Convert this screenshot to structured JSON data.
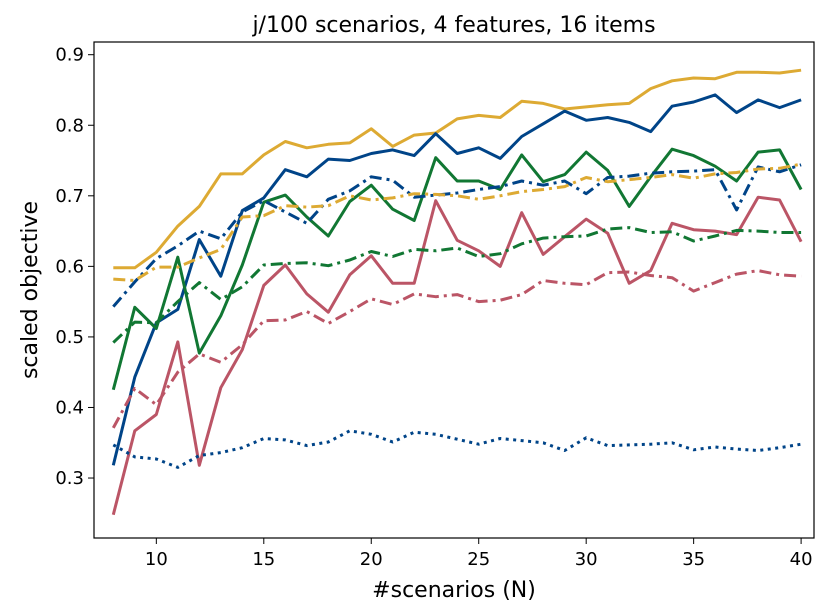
{
  "chart_data": {
    "type": "line",
    "title": "j/100 scenarios, 4 features, 16 items",
    "xlabel": "#scenarios (N)",
    "ylabel": "scaled objective",
    "xlim": [
      7.1,
      40.6
    ],
    "ylim": [
      0.215,
      0.918
    ],
    "xticks": [
      10,
      15,
      20,
      25,
      30,
      35,
      40
    ],
    "yticks": [
      0.3,
      0.4,
      0.5,
      0.6,
      0.7,
      0.8,
      0.9
    ],
    "legend": "none",
    "grid": false,
    "x": [
      8,
      9,
      10,
      11,
      12,
      13,
      14,
      15,
      16,
      17,
      18,
      19,
      20,
      21,
      22,
      23,
      24,
      25,
      26,
      27,
      28,
      29,
      30,
      31,
      32,
      33,
      34,
      35,
      36,
      37,
      38,
      39,
      40
    ],
    "series": [
      {
        "color": "#ddaa33",
        "dash": "solid",
        "values": [
          0.598,
          0.598,
          0.62,
          0.657,
          0.685,
          0.731,
          0.731,
          0.758,
          0.777,
          0.768,
          0.773,
          0.775,
          0.795,
          0.77,
          0.786,
          0.789,
          0.809,
          0.814,
          0.811,
          0.834,
          0.831,
          0.823,
          0.826,
          0.829,
          0.831,
          0.852,
          0.863,
          0.867,
          0.866,
          0.875,
          0.875,
          0.874,
          0.878
        ]
      },
      {
        "color": "#004488",
        "dash": "solid",
        "values": [
          0.318,
          0.443,
          0.52,
          0.539,
          0.638,
          0.586,
          0.679,
          0.697,
          0.737,
          0.727,
          0.752,
          0.75,
          0.76,
          0.765,
          0.757,
          0.788,
          0.76,
          0.768,
          0.753,
          0.784,
          0.802,
          0.82,
          0.807,
          0.811,
          0.804,
          0.791,
          0.827,
          0.833,
          0.843,
          0.818,
          0.836,
          0.825,
          0.836
        ]
      },
      {
        "color": "#117733",
        "dash": "solid",
        "values": [
          0.425,
          0.542,
          0.512,
          0.613,
          0.477,
          0.53,
          0.602,
          0.691,
          0.701,
          0.67,
          0.643,
          0.692,
          0.715,
          0.681,
          0.665,
          0.754,
          0.721,
          0.721,
          0.709,
          0.758,
          0.72,
          0.73,
          0.762,
          0.736,
          0.685,
          0.727,
          0.766,
          0.757,
          0.742,
          0.721,
          0.762,
          0.765,
          0.709
        ]
      },
      {
        "color": "#bb5566",
        "dash": "solid",
        "values": [
          0.248,
          0.367,
          0.39,
          0.493,
          0.318,
          0.428,
          0.482,
          0.573,
          0.602,
          0.561,
          0.535,
          0.588,
          0.615,
          0.576,
          0.576,
          0.693,
          0.637,
          0.622,
          0.6,
          0.676,
          0.617,
          0.642,
          0.667,
          0.647,
          0.576,
          0.594,
          0.661,
          0.652,
          0.65,
          0.645,
          0.698,
          0.694,
          0.635
        ]
      },
      {
        "color": "#004488",
        "dash": "dashdot",
        "values": [
          0.543,
          0.578,
          0.611,
          0.629,
          0.65,
          0.639,
          0.677,
          0.693,
          0.677,
          0.661,
          0.695,
          0.707,
          0.727,
          0.722,
          0.698,
          0.701,
          0.704,
          0.709,
          0.713,
          0.721,
          0.715,
          0.721,
          0.703,
          0.726,
          0.728,
          0.732,
          0.734,
          0.735,
          0.737,
          0.68,
          0.741,
          0.734,
          0.744
        ]
      },
      {
        "color": "#ddaa33",
        "dash": "dashdot",
        "values": [
          0.582,
          0.58,
          0.599,
          0.599,
          0.612,
          0.624,
          0.67,
          0.672,
          0.686,
          0.684,
          0.686,
          0.7,
          0.694,
          0.697,
          0.703,
          0.702,
          0.7,
          0.695,
          0.7,
          0.706,
          0.709,
          0.713,
          0.726,
          0.72,
          0.723,
          0.726,
          0.73,
          0.725,
          0.731,
          0.733,
          0.738,
          0.739,
          0.745
        ]
      },
      {
        "color": "#117733",
        "dash": "dashdot",
        "values": [
          0.492,
          0.521,
          0.52,
          0.55,
          0.577,
          0.553,
          0.571,
          0.602,
          0.604,
          0.605,
          0.601,
          0.609,
          0.621,
          0.614,
          0.624,
          0.622,
          0.626,
          0.614,
          0.618,
          0.632,
          0.64,
          0.642,
          0.643,
          0.653,
          0.655,
          0.648,
          0.649,
          0.636,
          0.643,
          0.651,
          0.65,
          0.648,
          0.648
        ]
      },
      {
        "color": "#bb5566",
        "dash": "dashdot",
        "values": [
          0.371,
          0.427,
          0.404,
          0.45,
          0.476,
          0.464,
          0.489,
          0.523,
          0.524,
          0.536,
          0.519,
          0.536,
          0.554,
          0.546,
          0.561,
          0.557,
          0.56,
          0.55,
          0.552,
          0.56,
          0.58,
          0.576,
          0.574,
          0.591,
          0.592,
          0.587,
          0.584,
          0.565,
          0.577,
          0.589,
          0.594,
          0.588,
          0.586
        ]
      },
      {
        "color": "#004488",
        "dash": "dotted",
        "values": [
          0.347,
          0.33,
          0.327,
          0.315,
          0.332,
          0.336,
          0.343,
          0.356,
          0.354,
          0.346,
          0.351,
          0.367,
          0.362,
          0.351,
          0.365,
          0.362,
          0.355,
          0.348,
          0.356,
          0.353,
          0.35,
          0.339,
          0.357,
          0.346,
          0.347,
          0.348,
          0.35,
          0.34,
          0.344,
          0.341,
          0.339,
          0.343,
          0.348
        ]
      }
    ]
  }
}
